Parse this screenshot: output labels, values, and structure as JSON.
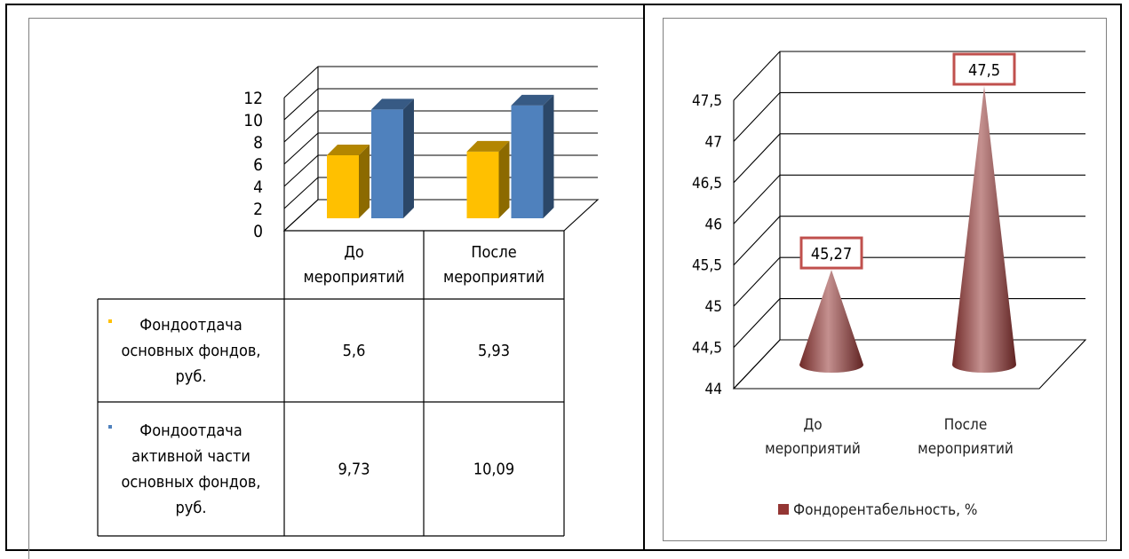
{
  "chart_data": [
    {
      "type": "bar",
      "categories": [
        "До мероприятий",
        "После мероприятий"
      ],
      "category_lines": [
        [
          "До",
          "мероприятий"
        ],
        [
          "После",
          "мероприятий"
        ]
      ],
      "ylim": [
        0,
        12
      ],
      "yticks": [
        0,
        2,
        4,
        6,
        8,
        10,
        12
      ],
      "series": [
        {
          "name": "Фондоотдача основных фондов, руб.",
          "name_lines": [
            "Фондоотдача",
            "основных фондов,",
            "руб."
          ],
          "values": [
            5.6,
            5.93
          ],
          "labels": [
            "5,6",
            "5,93"
          ],
          "color": "#FFC000"
        },
        {
          "name": "Фондоотдача активной части основных фондов, руб.",
          "name_lines": [
            "Фондоотдача",
            "активной части",
            "основных фондов,",
            "руб."
          ],
          "values": [
            9.73,
            10.09
          ],
          "labels": [
            "9,73",
            "10,09"
          ],
          "color": "#4F81BD"
        }
      ],
      "data_table": true,
      "grid": true
    },
    {
      "type": "bar",
      "shape": "cone",
      "categories": [
        "До мероприятий",
        "После мероприятий"
      ],
      "category_lines": [
        [
          "До",
          "мероприятий"
        ],
        [
          "После",
          "мероприятий"
        ]
      ],
      "ylim": [
        44,
        47.5
      ],
      "yticks": [
        "44",
        "44,5",
        "45",
        "45,5",
        "46",
        "46,5",
        "47",
        "47,5"
      ],
      "series": [
        {
          "name": "Фондорентабельность, %",
          "values": [
            45.27,
            47.5
          ],
          "labels": [
            "45,27",
            "47,5"
          ],
          "color": "#943634"
        }
      ],
      "legend": "bottom",
      "grid": true
    }
  ]
}
